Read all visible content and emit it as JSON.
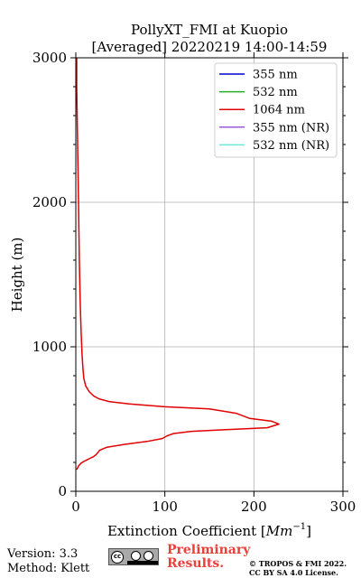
{
  "chart_data": {
    "type": "line",
    "title_line1": "PollyXT_FMI at Kuopio",
    "title_line2": "[Averaged] 20220219 14:00-14:59",
    "xlabel_prefix": "Extinction Coefficient [",
    "xlabel_unit": "Mm",
    "xlabel_exp": "−1",
    "xlabel_suffix": "]",
    "ylabel": "Height (m)",
    "xlim": [
      0,
      300
    ],
    "ylim": [
      0,
      3000
    ],
    "x_ticks": [
      "0",
      "100",
      "200",
      "300"
    ],
    "y_ticks": [
      "0",
      "1000",
      "2000",
      "3000"
    ],
    "grid": true,
    "legend_position": "top-right",
    "series": [
      {
        "name": "355 nm",
        "color": "#0000cd",
        "points": []
      },
      {
        "name": "532 nm",
        "color": "#22b022",
        "points": []
      },
      {
        "name": "1064 nm",
        "color": "#e00000",
        "points": [
          [
            1,
            150
          ],
          [
            3,
            175
          ],
          [
            6,
            195
          ],
          [
            10,
            210
          ],
          [
            15,
            225
          ],
          [
            20,
            240
          ],
          [
            23,
            255
          ],
          [
            25,
            270
          ],
          [
            27,
            285
          ],
          [
            35,
            305
          ],
          [
            55,
            325
          ],
          [
            80,
            345
          ],
          [
            97,
            365
          ],
          [
            103,
            385
          ],
          [
            110,
            400
          ],
          [
            130,
            415
          ],
          [
            180,
            430
          ],
          [
            215,
            440
          ],
          [
            228,
            465
          ],
          [
            220,
            485
          ],
          [
            195,
            505
          ],
          [
            180,
            540
          ],
          [
            150,
            570
          ],
          [
            100,
            585
          ],
          [
            60,
            605
          ],
          [
            38,
            620
          ],
          [
            26,
            640
          ],
          [
            20,
            660
          ],
          [
            15,
            690
          ],
          [
            11,
            730
          ],
          [
            9,
            780
          ],
          [
            8,
            850
          ],
          [
            7,
            950
          ],
          [
            6,
            1100
          ],
          [
            5,
            1300
          ],
          [
            4,
            1600
          ],
          [
            3,
            2000
          ],
          [
            2,
            2400
          ],
          [
            1,
            2800
          ],
          [
            1,
            3000
          ]
        ]
      },
      {
        "name": "355 nm (NR)",
        "color": "#9b59e0",
        "points": []
      },
      {
        "name": "532 nm (NR)",
        "color": "#6fe6d6",
        "points": []
      }
    ]
  },
  "footer": {
    "version": "Version: 3.3",
    "method": "Method: Klett",
    "cc_icon": "cc-by-sa-badge",
    "cc_text": "cc",
    "preliminary_line1": "Preliminary",
    "preliminary_line2": "Results.",
    "preliminary_color": "#e8403a",
    "copyright_line1": "© TROPOS & FMI 2022.",
    "copyright_line2": "CC BY SA 4.0 License."
  }
}
